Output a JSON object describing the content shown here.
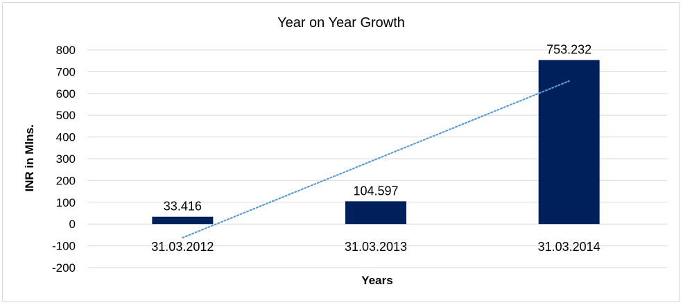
{
  "chart_data": {
    "type": "bar",
    "title": "Year on Year Growth",
    "xlabel": "Years",
    "ylabel": "INR in Mlns.",
    "categories": [
      "31.03.2012",
      "31.03.2013",
      "31.03.2014"
    ],
    "values": [
      33.416,
      104.597,
      753.232
    ],
    "data_labels": [
      "33.416",
      "104.597",
      "753.232"
    ],
    "ylim": [
      -200,
      800
    ],
    "yticks": [
      800,
      700,
      600,
      500,
      400,
      300,
      200,
      100,
      0,
      -100,
      -200
    ],
    "grid": true,
    "legend": "none",
    "trendline": {
      "type": "linear",
      "style": "dotted"
    },
    "colors": {
      "bar": "#00205b",
      "trendline": "#5b9bd5",
      "grid": "#d9d9d9"
    }
  }
}
